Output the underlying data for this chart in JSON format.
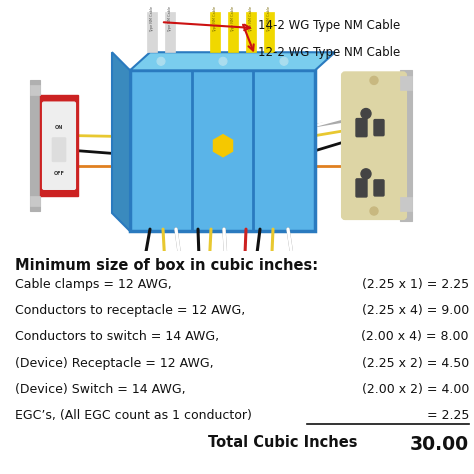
{
  "background_color": "#ffffff",
  "cable_label_1": "14-2 WG Type NM Cable",
  "cable_label_2": "12-2 WG Type NM Cable",
  "section_title": "Minimum size of box in cubic inches:",
  "rows": [
    {
      "label": "Cable clamps = 12 AWG,",
      "formula": "(2.25 x 1) = 2.25"
    },
    {
      "label": "Conductors to receptacle = 12 AWG,",
      "formula": "(2.25 x 4) = 9.00"
    },
    {
      "label": "Conductors to switch = 14 AWG,",
      "formula": "(2.00 x 4) = 8.00"
    },
    {
      "label": "(Device) Receptacle = 12 AWG,",
      "formula": "(2.25 x 2) = 4.50"
    },
    {
      "label": "(Device) Switch = 14 AWG,",
      "formula": "(2.00 x 2) = 4.00"
    },
    {
      "label": "EGC’s, (All EGC count as 1 conductor)",
      "formula": "= 2.25"
    }
  ],
  "total_label": "Total Cubic Inches",
  "total_value": "30.00",
  "title_fontsize": 10.5,
  "row_fontsize": 9.0,
  "total_fontsize": 10.5,
  "text_color": "#111111",
  "box_color": "#5ab4e8",
  "box_edge_color": "#2a7abf",
  "cable_white_color": "#e8e8e8",
  "cable_yellow_color": "#f0d800",
  "switch_red_color": "#cc2222",
  "receptacle_color": "#e8dfc0",
  "wire_orange_color": "#e08020",
  "arrow_color": "#cc1111",
  "label_color": "#111111"
}
